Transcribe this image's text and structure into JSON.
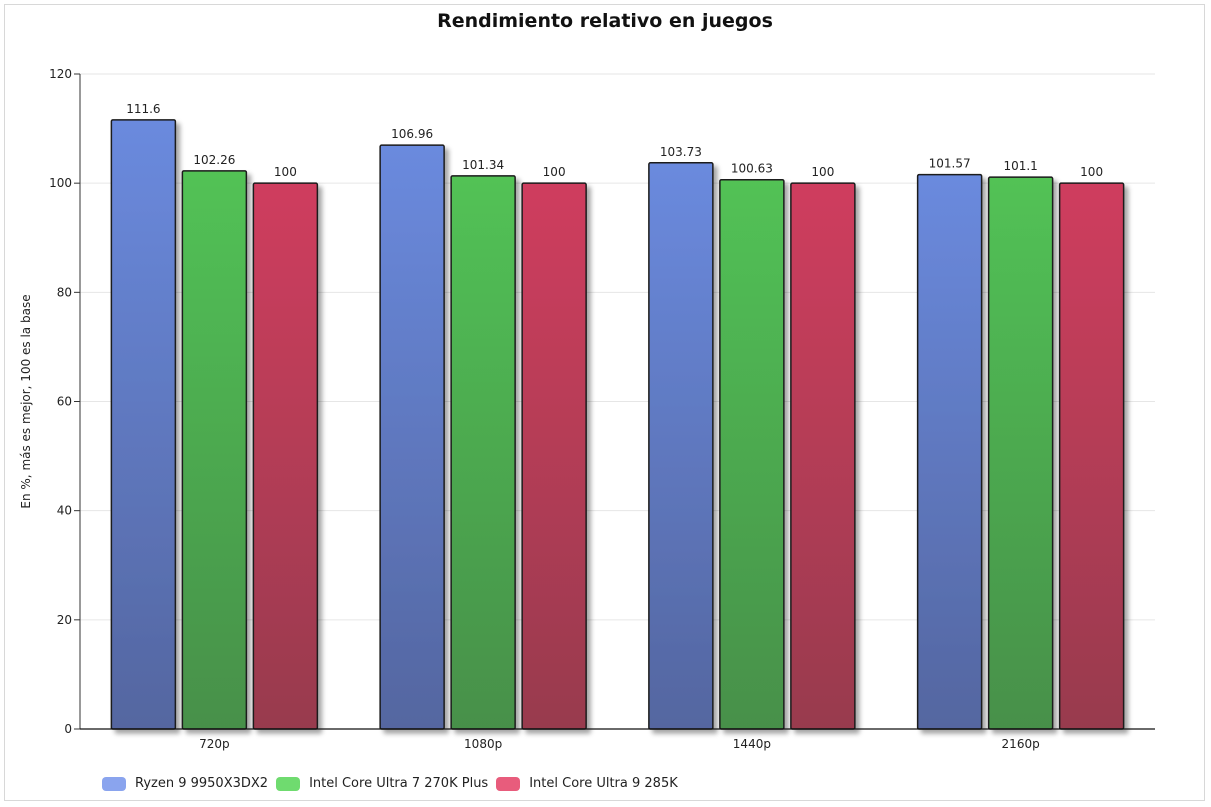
{
  "chart_data": {
    "type": "bar",
    "title": "Rendimiento relativo en juegos",
    "xlabel": "",
    "ylabel": "En %, más es mejor, 100 es la base",
    "ylim": [
      0,
      120
    ],
    "yticks": [
      0,
      20,
      40,
      60,
      80,
      100,
      120
    ],
    "grid": true,
    "legend_placement": "bottom-left",
    "categories": [
      "720p",
      "1080p",
      "1440p",
      "2160p"
    ],
    "series": [
      {
        "name": "Ryzen 9 9950X3DX2",
        "values": [
          111.6,
          106.96,
          103.73,
          101.57
        ],
        "color": "#6a8ade",
        "color_dark": "#5466a0",
        "legend_color": "#8aa4ee"
      },
      {
        "name": "Intel Core Ultra 7 270K Plus",
        "values": [
          102.26,
          101.34,
          100.63,
          101.1
        ],
        "color": "#52c255",
        "color_dark": "#47904a",
        "legend_color": "#6fdb6f"
      },
      {
        "name": "Intel Core Ultra 9 285K",
        "values": [
          100,
          100,
          100,
          100
        ],
        "color": "#cf3e5e",
        "color_dark": "#983a4e",
        "legend_color": "#e85c7c"
      }
    ],
    "data_labels": [
      [
        "111.6",
        "106.96",
        "103.73",
        "101.57"
      ],
      [
        "102.26",
        "101.34",
        "100.63",
        "101.1"
      ],
      [
        "100",
        "100",
        "100",
        "100"
      ]
    ]
  }
}
